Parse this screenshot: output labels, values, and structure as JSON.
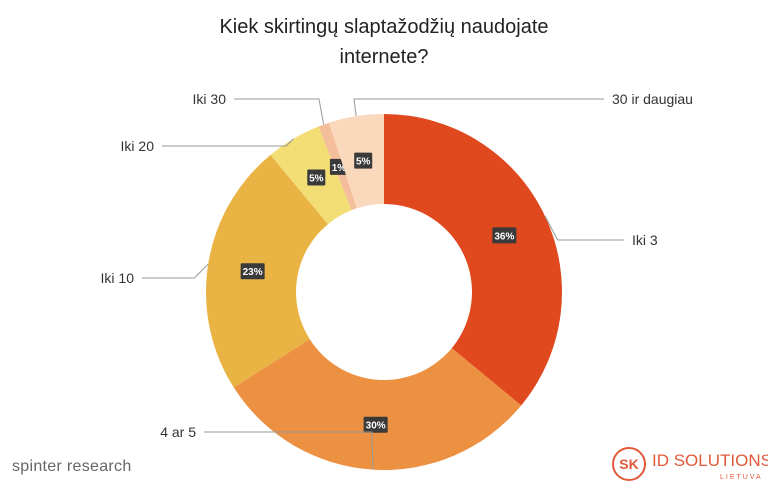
{
  "chart_data": {
    "type": "pie",
    "variant": "donut",
    "title": "Kiek skirtingų slaptažodžių naudojate internete?",
    "title_lines": [
      "Kiek skirtingų slaptažodžių naudojate",
      "internete?"
    ],
    "categories": [
      "Iki 3",
      "4 ar 5",
      "Iki 10",
      "Iki 20",
      "Iki 30",
      "30 ir daugiau"
    ],
    "values": [
      36,
      30,
      23,
      5,
      1,
      5
    ],
    "data_labels": [
      "36%",
      "30%",
      "23%",
      "5%",
      "1%",
      "5%"
    ],
    "colors": [
      "#E0481E",
      "#EC9042",
      "#E9B444",
      "#F2DE74",
      "#F5BE9A",
      "#FAD8BC"
    ],
    "legend": "none (leader-line labels)"
  },
  "footer": {
    "left_brand": "spinter research",
    "logo_mark": "SK",
    "logo_text": "ID SOLUTIONS",
    "logo_sub": "LIETUVA"
  }
}
